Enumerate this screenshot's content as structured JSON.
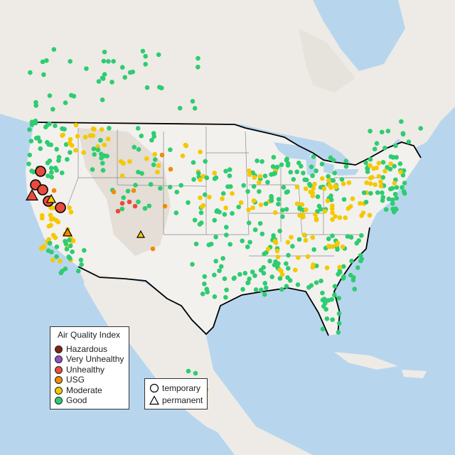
{
  "colors": {
    "ocean": "#b7d6ee",
    "land": "#eeebe6",
    "land_us": "#f3f1ee",
    "mountain": "#ddd6cd",
    "border": "#000000",
    "state_line": "#8a8a8a"
  },
  "legend": {
    "title": "Air Quality Index",
    "categories": [
      {
        "label": "Hazardous",
        "color": "#7e2418"
      },
      {
        "label": "Very Unhealthy",
        "color": "#9150c0"
      },
      {
        "label": "Unhealthy",
        "color": "#e84c3d"
      },
      {
        "label": "USG",
        "color": "#f08c00"
      },
      {
        "label": "Moderate",
        "color": "#f5c800"
      },
      {
        "label": "Good",
        "color": "#2ecc71"
      }
    ],
    "types": [
      {
        "label": "temporary",
        "shape": "circle"
      },
      {
        "label": "permanent",
        "shape": "triangle"
      }
    ]
  }
}
